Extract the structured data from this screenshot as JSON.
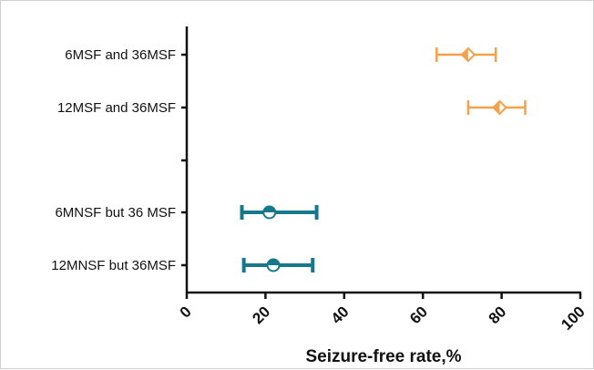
{
  "chart_data": {
    "type": "forest",
    "xlabel": "Seizure-free rate,%",
    "xlim": [
      0,
      100
    ],
    "xticks": [
      0,
      20,
      40,
      60,
      80,
      100
    ],
    "grid": false,
    "categories": [
      "6MSF and 36MSF",
      "12MSF and 36MSF",
      "",
      "6MNSF but 36 MSF",
      "12MNSF but 36MSF"
    ],
    "points": [
      {
        "label": "6MSF and 36MSF",
        "estimate": 71.5,
        "lower": 63.5,
        "upper": 78.5,
        "color": "#f4a24a",
        "marker": "diamond-half"
      },
      {
        "label": "12MSF and 36MSF",
        "estimate": 79.5,
        "lower": 71.5,
        "upper": 86.0,
        "color": "#f4a24a",
        "marker": "diamond-half"
      },
      {
        "label": "6MNSF but 36 MSF",
        "estimate": 21.0,
        "lower": 14.0,
        "upper": 33.0,
        "color": "#17788c",
        "marker": "circle-half"
      },
      {
        "label": "12MNSF but 36MSF",
        "estimate": 22.0,
        "lower": 14.5,
        "upper": 32.0,
        "color": "#17788c",
        "marker": "circle-half"
      }
    ]
  }
}
